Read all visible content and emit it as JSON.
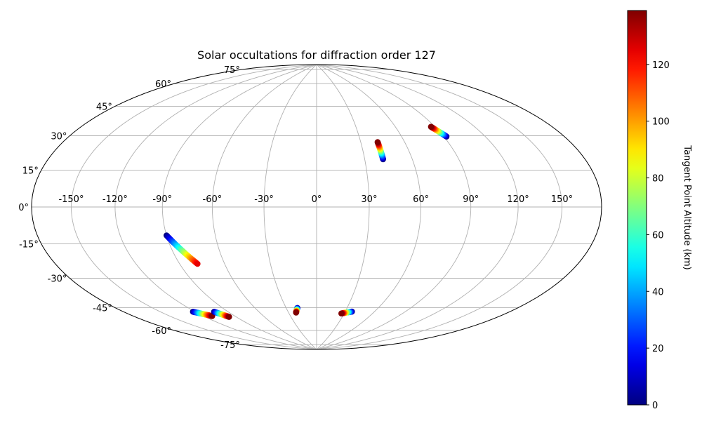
{
  "chart_data": {
    "type": "scatter",
    "projection": "hammer",
    "title": "Solar occultations for diffraction order 127",
    "x_tick_labels": [
      "-150°",
      "-120°",
      "-90°",
      "-60°",
      "-30°",
      "0°",
      "30°",
      "60°",
      "90°",
      "120°",
      "150°"
    ],
    "y_tick_labels": [
      "-75°",
      "-60°",
      "-45°",
      "-30°",
      "-15°",
      "0°",
      "15°",
      "30°",
      "45°",
      "60°",
      "75°"
    ],
    "grid": true,
    "colorbar": {
      "label": "Tangent Point Altitude (km)",
      "range": [
        0,
        139
      ],
      "ticks": [
        "0",
        "20",
        "40",
        "60",
        "80",
        "100",
        "120"
      ],
      "colormap": "jet"
    },
    "series": [
      {
        "lon_start": 41.5,
        "lat_start": 27.0,
        "lon_end": 41.5,
        "lat_end": 37.0,
        "alt_start": 0,
        "alt_end": 139
      },
      {
        "lon_start": 92.0,
        "lat_start": 38.0,
        "lon_end": 87.0,
        "lat_end": 44.0,
        "alt_start": 0,
        "alt_end": 139
      },
      {
        "lon_start": -90.0,
        "lat_start": -15.0,
        "lon_end": -78.0,
        "lat_end": -31.0,
        "alt_start": 0,
        "alt_end": 125
      },
      {
        "lon_start": -122.0,
        "lat_start": -56.0,
        "lon_end": -112.0,
        "lat_end": -60.0,
        "alt_start": 0,
        "alt_end": 139
      },
      {
        "lon_start": -103.0,
        "lat_start": -58.0,
        "lon_end": -97.0,
        "lat_end": -62.0,
        "alt_start": 0,
        "alt_end": 139
      },
      {
        "lon_start": -19.0,
        "lat_start": -60.0,
        "lon_end": -22.0,
        "lat_end": -63.0,
        "alt_start": 0,
        "alt_end": 139
      },
      {
        "lon_start": 37.0,
        "lat_start": -62.0,
        "lon_end": 27.0,
        "lat_end": -63.5,
        "alt_start": 0,
        "alt_end": 139
      }
    ]
  }
}
